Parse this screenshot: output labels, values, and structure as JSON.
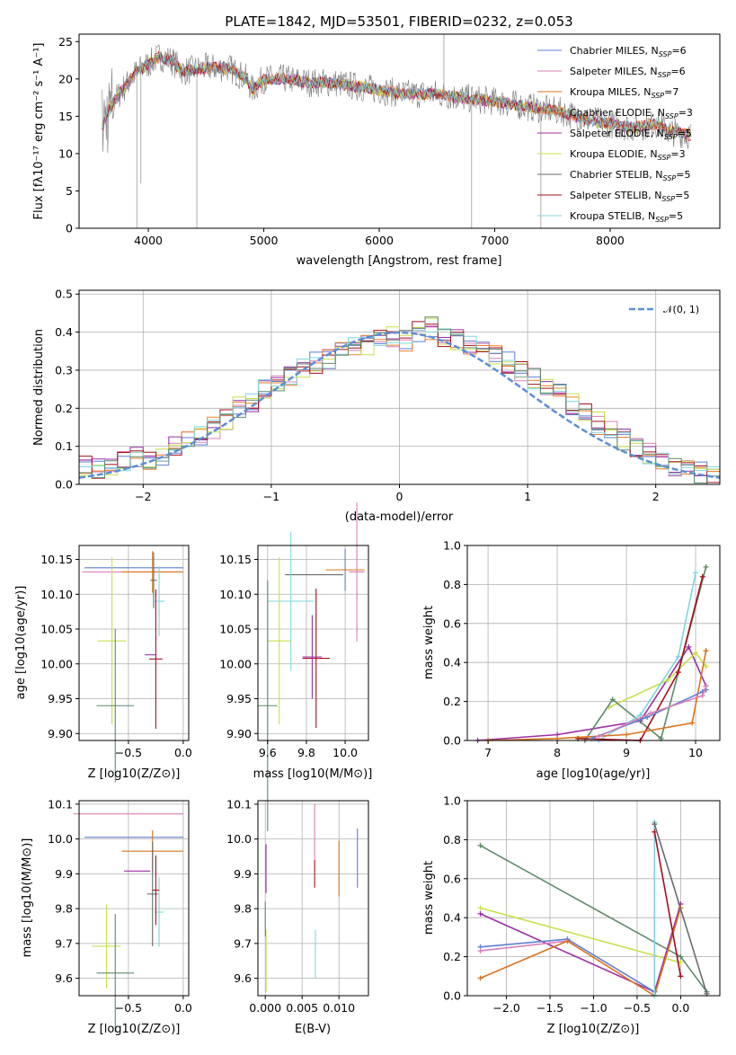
{
  "title": "PLATE=1842, MJD=53501, FIBERID=0232, z=0.053",
  "colors": [
    "#5f7fd4",
    "#d97fb8",
    "#d9741d",
    "#ee7f2a",
    "#9b2fa6",
    "#c8e04a",
    "#6a6a6a",
    "#a50f1c",
    "#7fd6dd",
    "#5e8a6a"
  ],
  "chart_data": [
    {
      "type": "line",
      "id": "spectrum",
      "title": "PLATE=1842, MJD=53501, FIBERID=0232, z=0.053",
      "xlabel": "wavelength [Angstrom, rest frame]",
      "ylabel": "Flux [fλ10⁻¹⁷ erg cm⁻² s⁻¹ A⁻¹]",
      "xlim": [
        3400,
        8950
      ],
      "ylim": [
        0,
        26
      ],
      "xticks": [
        "4000",
        "5000",
        "6000",
        "7000",
        "8000"
      ],
      "yticks": [
        "0",
        "5",
        "10",
        "15",
        "20",
        "25"
      ],
      "legend_position": "top-right",
      "legend": [
        {
          "name": "Chabrier MILES, N",
          "sub": "SSP",
          "n": "=6"
        },
        {
          "name": "Salpeter MILES, N",
          "sub": "SSP",
          "n": "=6"
        },
        {
          "name": "Kroupa MILES, N",
          "sub": "SSP",
          "n": "=7"
        },
        {
          "name": "Chabrier ELODIE, N",
          "sub": "SSP",
          "n": "=3"
        },
        {
          "name": "Salpeter ELODIE, N",
          "sub": "SSP",
          "n": "=5"
        },
        {
          "name": "Kroupa ELODIE, N",
          "sub": "SSP",
          "n": "=3"
        },
        {
          "name": "Chabrier STELIB, N",
          "sub": "SSP",
          "n": "=5"
        },
        {
          "name": "Salpeter STELIB, N",
          "sub": "SSP",
          "n": "=5"
        },
        {
          "name": "Kroupa STELIB, N",
          "sub": "SSP",
          "n": "=5"
        }
      ],
      "continuum": {
        "x": [
          3600,
          3650,
          3700,
          3800,
          3900,
          3950,
          4000,
          4100,
          4200,
          4300,
          4500,
          4700,
          4850,
          4900,
          5000,
          5200,
          5400,
          5600,
          5800,
          6000,
          6200,
          6500,
          6700,
          7000,
          7200,
          7400,
          7600,
          7700,
          7800,
          8000,
          8200,
          8400,
          8500,
          8700
        ],
        "y": [
          13.5,
          15.5,
          17,
          19,
          21,
          21.5,
          22,
          23,
          22.5,
          21,
          21.5,
          21.5,
          20,
          18.5,
          20,
          20,
          19.5,
          19.5,
          19,
          18.5,
          18,
          18,
          17.5,
          17,
          16.5,
          16,
          15.5,
          15,
          14.5,
          14,
          13.5,
          14,
          13,
          12.5
        ]
      }
    },
    {
      "type": "step",
      "id": "residual-histogram",
      "xlabel": "(data-model)/error",
      "ylabel": "Normed distribution",
      "xlim": [
        -2.5,
        2.5
      ],
      "ylim": [
        0,
        0.51
      ],
      "xticks": [
        "−2",
        "−1",
        "0",
        "1",
        "2"
      ],
      "yticks": [
        "0.0",
        "0.1",
        "0.2",
        "0.3",
        "0.4",
        "0.5"
      ],
      "legend_position": "top-right",
      "reference_curve": "𝒩(0, 1)",
      "bin_width": 0.1,
      "series": [
        {
          "values": [
            0.05,
            0.04,
            0.05,
            0.06,
            0.07,
            0.06,
            0.08,
            0.1,
            0.11,
            0.13,
            0.15,
            0.17,
            0.2,
            0.22,
            0.25,
            0.27,
            0.29,
            0.3,
            0.32,
            0.33,
            0.35,
            0.36,
            0.37,
            0.38,
            0.39,
            0.38,
            0.4,
            0.41,
            0.39,
            0.38,
            0.37,
            0.36,
            0.34,
            0.32,
            0.3,
            0.28,
            0.26,
            0.24,
            0.21,
            0.19,
            0.16,
            0.14,
            0.12,
            0.1,
            0.08,
            0.06,
            0.05,
            0.04,
            0.03,
            0.02
          ]
        }
      ]
    },
    {
      "type": "scatter",
      "id": "age-vs-Z",
      "xlabel": "Z [log10(Z/Z⊙)]",
      "ylabel": "age [log10(age/yr)]",
      "xlim": [
        -0.95,
        0.05
      ],
      "ylim": [
        9.89,
        10.17
      ],
      "xticks": [
        "−0.5",
        "0.0"
      ],
      "yticks": [
        "9.90",
        "9.95",
        "10.00",
        "10.05",
        "10.10",
        "10.15"
      ]
    },
    {
      "type": "scatter",
      "id": "age-vs-mass",
      "xlabel": "mass [log10(M/M⊙)]",
      "xlim": [
        9.55,
        10.12
      ],
      "ylim": [
        9.89,
        10.17
      ],
      "xticks": [
        "9.6",
        "9.8",
        "10.0"
      ],
      "yticks": [
        "9.90",
        "9.95",
        "10.00",
        "10.05",
        "10.10",
        "10.15"
      ]
    },
    {
      "type": "line",
      "id": "mass-weight-vs-age",
      "xlabel": "age  [log10(age/yr)]",
      "ylabel": "mass weight",
      "xlim": [
        6.7,
        10.35
      ],
      "ylim": [
        0,
        1
      ],
      "xticks": [
        "7",
        "8",
        "9",
        "10"
      ],
      "yticks": [
        "0.0",
        "0.2",
        "0.4",
        "0.6",
        "0.8",
        "1.0"
      ]
    },
    {
      "type": "scatter",
      "id": "mass-vs-Z",
      "xlabel": "Z [log10(Z/Z⊙)]",
      "ylabel": "mass [log10(M/M⊙)]",
      "xlim": [
        -0.95,
        0.05
      ],
      "ylim": [
        9.55,
        10.11
      ],
      "xticks": [
        "−0.5",
        "0.0"
      ],
      "yticks": [
        "9.6",
        "9.7",
        "9.8",
        "9.9",
        "10.0",
        "10.1"
      ]
    },
    {
      "type": "scatter",
      "id": "mass-vs-EBV",
      "xlabel": "E(B-V)",
      "xlim": [
        -0.001,
        0.014
      ],
      "ylim": [
        9.55,
        10.11
      ],
      "xticks": [
        "0.000",
        "0.005",
        "0.010"
      ],
      "yticks": [
        "9.6",
        "9.7",
        "9.8",
        "9.9",
        "10.0",
        "10.1"
      ]
    },
    {
      "type": "line",
      "id": "mass-weight-vs-Z",
      "xlabel": "Z [log10(Z/Z⊙)]",
      "ylabel": "mass weight",
      "xlim": [
        -2.45,
        0.45
      ],
      "ylim": [
        0,
        1
      ],
      "xticks": [
        "−2.0",
        "−1.5",
        "−1.0",
        "−0.5",
        "0.0"
      ],
      "yticks": [
        "0.0",
        "0.2",
        "0.4",
        "0.6",
        "0.8",
        "1.0"
      ]
    }
  ]
}
